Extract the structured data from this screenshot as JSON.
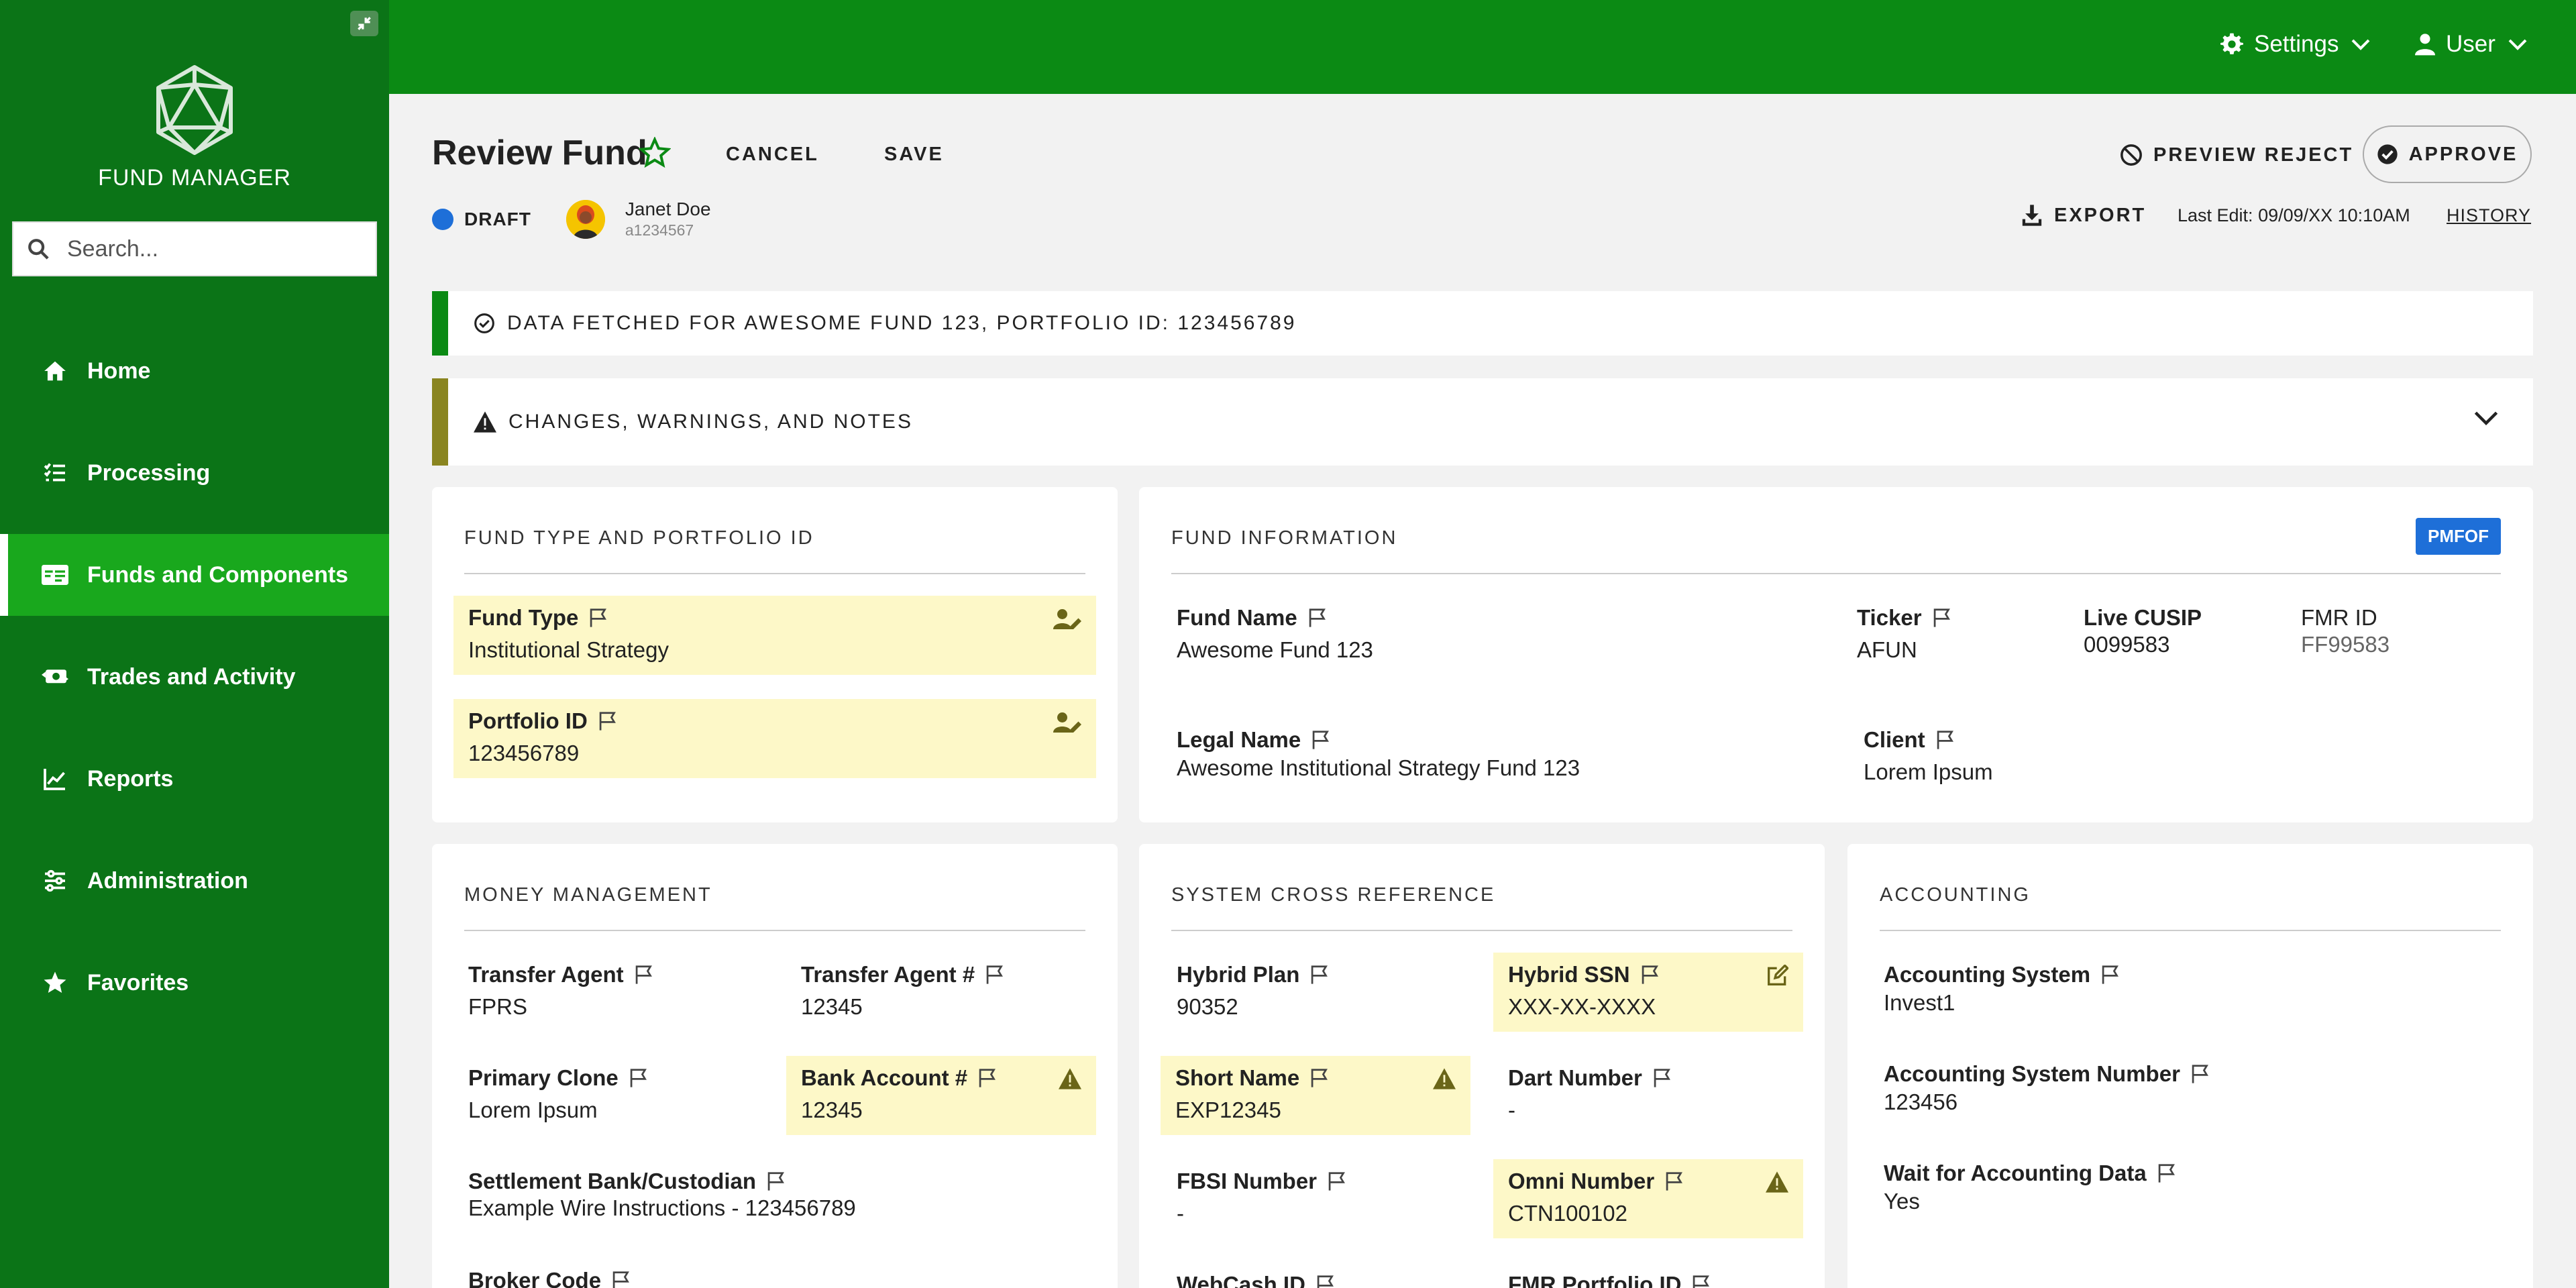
{
  "app": {
    "name": "FUND MANAGER",
    "search_placeholder": "Search..."
  },
  "nav": [
    {
      "label": "Home",
      "icon": "home-icon"
    },
    {
      "label": "Processing",
      "icon": "list-check-icon"
    },
    {
      "label": "Funds and Components",
      "icon": "id-card-icon",
      "active": true
    },
    {
      "label": "Trades and Activity",
      "icon": "money-exchange-icon"
    },
    {
      "label": "Reports",
      "icon": "line-chart-icon"
    },
    {
      "label": "Administration",
      "icon": "sliders-icon"
    },
    {
      "label": "Favorites",
      "icon": "star-icon"
    }
  ],
  "topbar": {
    "settings_label": "Settings",
    "user_label": "User"
  },
  "header": {
    "title": "Review Fund",
    "cancel_label": "CANCEL",
    "save_label": "SAVE",
    "status": "DRAFT",
    "user_name": "Janet Doe",
    "user_id": "a1234567",
    "preview_reject_label": "PREVIEW REJECT",
    "approve_label": "APPROVE",
    "export_label": "EXPORT",
    "last_edit": "Last Edit: 09/09/XX 10:10AM",
    "history_label": "HISTORY"
  },
  "banners": {
    "success": "DATA FETCHED FOR AWESOME FUND 123, PORTFOLIO ID: 123456789",
    "warnings": "CHANGES, WARNINGS, AND NOTES"
  },
  "fund_type": {
    "title": "FUND TYPE AND PORTFOLIO ID",
    "fund_type_label": "Fund Type",
    "fund_type_value": "Institutional Strategy",
    "portfolio_label": "Portfolio ID",
    "portfolio_value": "123456789"
  },
  "fund_info": {
    "title": "FUND INFORMATION",
    "badge": "PMFOF",
    "fund_name_label": "Fund Name",
    "fund_name_value": "Awesome Fund 123",
    "ticker_label": "Ticker",
    "ticker_value": "AFUN",
    "cusip_label": "Live CUSIP",
    "cusip_value": "0099583",
    "fmr_label": "FMR ID",
    "fmr_value": "FF99583",
    "legal_label": "Legal Name",
    "legal_value": "Awesome Institutional Strategy Fund 123",
    "client_label": "Client",
    "client_value": "Lorem Ipsum"
  },
  "money": {
    "title": "MONEY MANAGEMENT",
    "transfer_agent_label": "Transfer Agent",
    "transfer_agent_value": "FPRS",
    "transfer_agent_num_label": "Transfer Agent #",
    "transfer_agent_num_value": "12345",
    "primary_clone_label": "Primary Clone",
    "primary_clone_value": "Lorem Ipsum",
    "bank_account_label": "Bank Account #",
    "bank_account_value": "12345",
    "settlement_label": "Settlement Bank/Custodian",
    "settlement_value": "Example Wire Instructions - 123456789",
    "broker_label": "Broker Code"
  },
  "xref": {
    "title": "SYSTEM CROSS REFERENCE",
    "hybrid_plan_label": "Hybrid Plan",
    "hybrid_plan_value": "90352",
    "hybrid_ssn_label": "Hybrid SSN",
    "hybrid_ssn_value": "XXX-XX-XXXX",
    "short_name_label": "Short Name",
    "short_name_value": "EXP12345",
    "dart_label": "Dart Number",
    "dart_value": "-",
    "fbsi_label": "FBSI Number",
    "fbsi_value": "-",
    "omni_label": "Omni Number",
    "omni_value": "CTN100102",
    "webcash_label": "WebCash ID",
    "fmr_portfolio_label": "FMR Portfolio ID"
  },
  "accounting": {
    "title": "ACCOUNTING",
    "system_label": "Accounting System",
    "system_value": "Invest1",
    "number_label": "Accounting System Number",
    "number_value": "123456",
    "wait_label": "Wait for Accounting Data",
    "wait_value": "Yes"
  },
  "colors": {
    "sidebar": "#0b7417",
    "topbar": "#0b8a14",
    "nav_active": "#19a81d",
    "highlight": "#fdf8c8",
    "badge": "#1e6fd8",
    "warning": "#8a8520"
  }
}
